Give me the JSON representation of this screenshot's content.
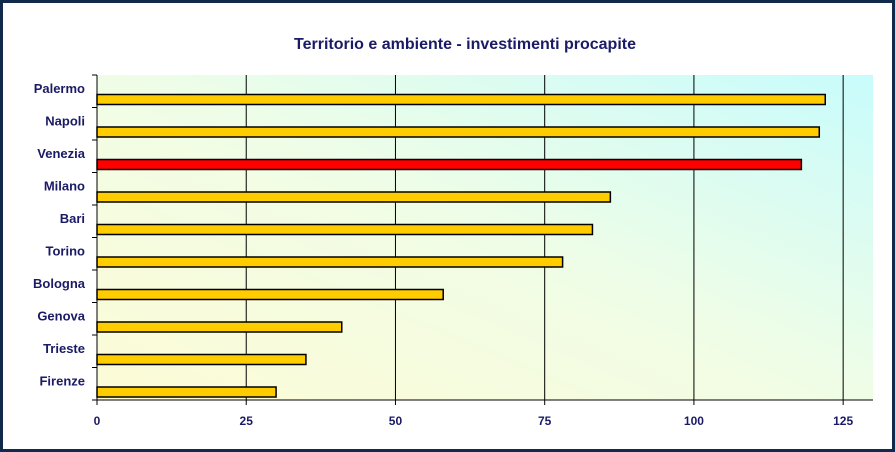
{
  "chart_data": {
    "type": "bar",
    "orientation": "horizontal",
    "title": "Territorio e ambiente - investimenti procapite",
    "categories": [
      "Palermo",
      "Napoli",
      "Venezia",
      "Milano",
      "Bari",
      "Torino",
      "Bologna",
      "Genova",
      "Trieste",
      "Firenze"
    ],
    "values": [
      122,
      121,
      118,
      86,
      83,
      78,
      58,
      41,
      35,
      30
    ],
    "colors": [
      "#ffcc00",
      "#ffcc00",
      "#ff0000",
      "#ffcc00",
      "#ffcc00",
      "#ffcc00",
      "#ffcc00",
      "#ffcc00",
      "#ffcc00",
      "#ffcc00"
    ],
    "xlim": [
      0,
      130
    ],
    "xticks": [
      0,
      25,
      50,
      75,
      100,
      125
    ],
    "grid": true
  }
}
